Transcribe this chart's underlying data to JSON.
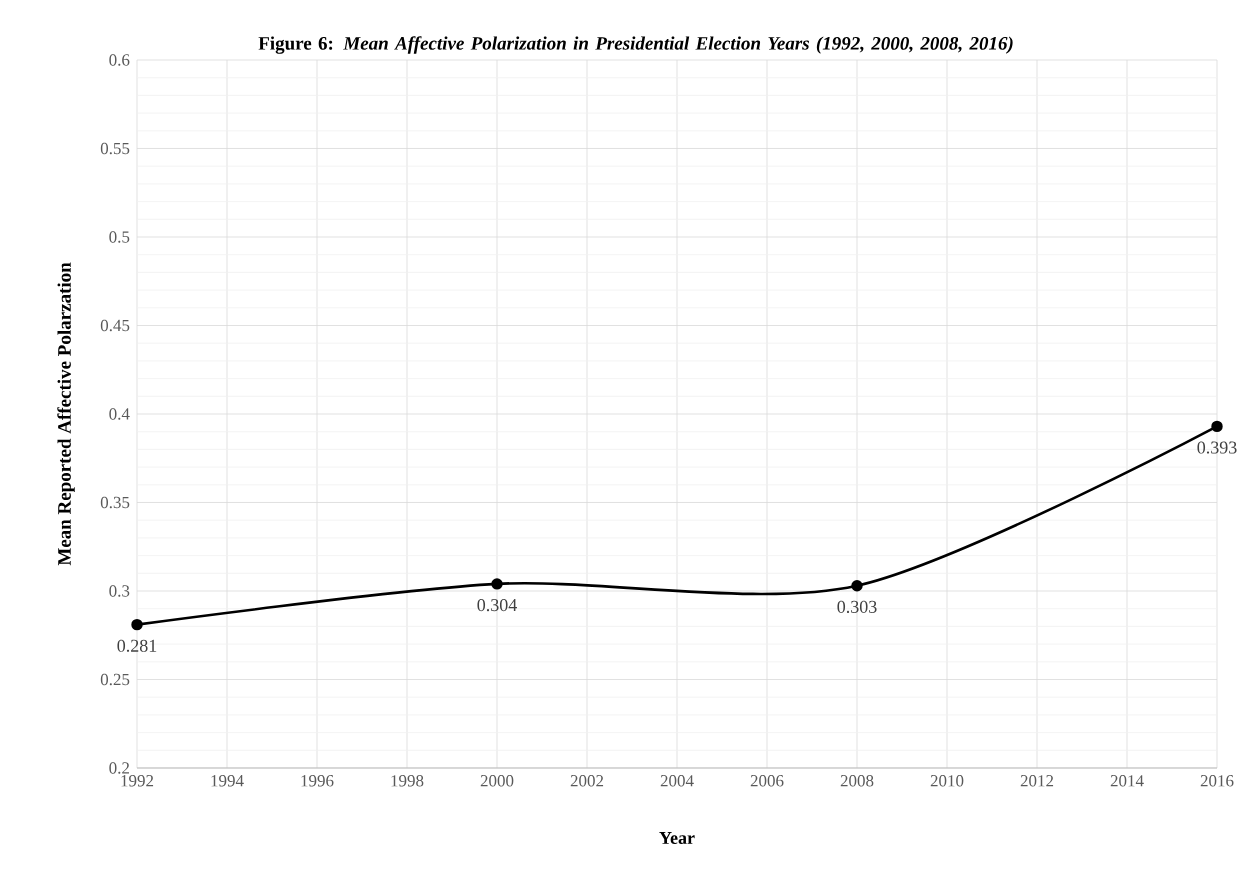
{
  "chart_data": {
    "type": "line",
    "title": "**Figure 6:** *Mean Affective Polarization in Presidential Election Years (1992, 2000, 2008, 2016)*",
    "xlabel": "Year",
    "ylabel": "Mean Reported Affective Polarzation",
    "x": [
      1992,
      2000,
      2008,
      2016
    ],
    "series": [
      {
        "color": "#000000",
        "values": [
          0.281,
          0.304,
          0.303,
          0.393
        ],
        "value_labels": [
          "0.281",
          "0.304",
          "0.303",
          "0.393"
        ]
      }
    ],
    "xlim": [
      1992,
      2016
    ],
    "xticks": [
      1992,
      1994,
      1996,
      1998,
      2000,
      2002,
      2004,
      2006,
      2008,
      2010,
      2012,
      2014,
      2016
    ],
    "ylim": [
      0.2,
      0.6
    ],
    "yticks": [
      0.2,
      0.25,
      0.3,
      0.35,
      0.4,
      0.45,
      0.5,
      0.55,
      0.6
    ],
    "grid": true,
    "marker": "circle",
    "line_style": "solid"
  }
}
